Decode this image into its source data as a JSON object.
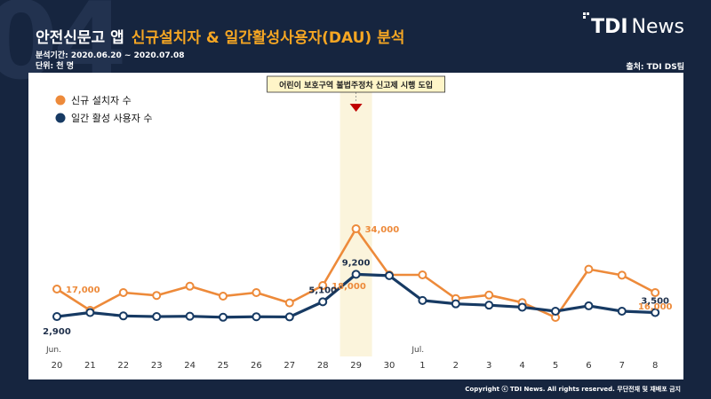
{
  "header": {
    "bg_number": "04",
    "title_main": "안전신문고 앱",
    "title_accent": "신규설치자 & 일간활성사용자(DAU) 분석",
    "period": "분석기간: 2020.06.20 ~ 2020.07.08",
    "unit": "단위: 천 명",
    "logo_bold": "TDI",
    "logo_light": "News",
    "source": "출처: TDI DS팀"
  },
  "footer": {
    "copyright": "Copyright ⓒ TDI News. All rights reserved. 무단전재 및 재배포 금지"
  },
  "colors": {
    "background": "#16253f",
    "series_new_installs": "#ed8a3a",
    "series_dau": "#173a63",
    "highlight": "#fbf4dc",
    "callout_arrow": "#c00000"
  },
  "chart_data": {
    "type": "line",
    "categories": [
      "20",
      "21",
      "22",
      "23",
      "24",
      "25",
      "26",
      "27",
      "28",
      "29",
      "30",
      "1",
      "2",
      "3",
      "4",
      "5",
      "6",
      "7",
      "8"
    ],
    "month_labels": [
      {
        "index": 0,
        "label": "Jun."
      },
      {
        "index": 11,
        "label": "Jul."
      }
    ],
    "series": [
      {
        "name": "신규 설치자 수",
        "color": "#ed8a3a",
        "values": [
          17000,
          11000,
          16000,
          15200,
          17800,
          15000,
          16000,
          13100,
          18000,
          34000,
          21000,
          21000,
          14300,
          15300,
          13200,
          9000,
          22600,
          20900,
          16000
        ]
      },
      {
        "name": "일간 활성 사용자 수",
        "color": "#173a63",
        "values": [
          2900,
          3500,
          3000,
          2900,
          2950,
          2800,
          2880,
          2850,
          5100,
          9200,
          9000,
          5300,
          4800,
          4600,
          4300,
          3700,
          4500,
          3700,
          3500
        ]
      }
    ],
    "data_labels": [
      {
        "series": 0,
        "index": 0,
        "text": "17,000"
      },
      {
        "series": 0,
        "index": 8,
        "text": "18,000"
      },
      {
        "series": 0,
        "index": 9,
        "text": "34,000"
      },
      {
        "series": 0,
        "index": 18,
        "text": "16,000"
      },
      {
        "series": 1,
        "index": 0,
        "text": "2,900"
      },
      {
        "series": 1,
        "index": 8,
        "text": "5,100"
      },
      {
        "series": 1,
        "index": 9,
        "text": "9,200"
      },
      {
        "series": 1,
        "index": 18,
        "text": "3,500"
      }
    ],
    "annotation": {
      "index": 9,
      "text": "어린이 보호구역 불법주정차 신고제 시행 도입"
    },
    "legend_position": "top-left",
    "grid": false
  }
}
